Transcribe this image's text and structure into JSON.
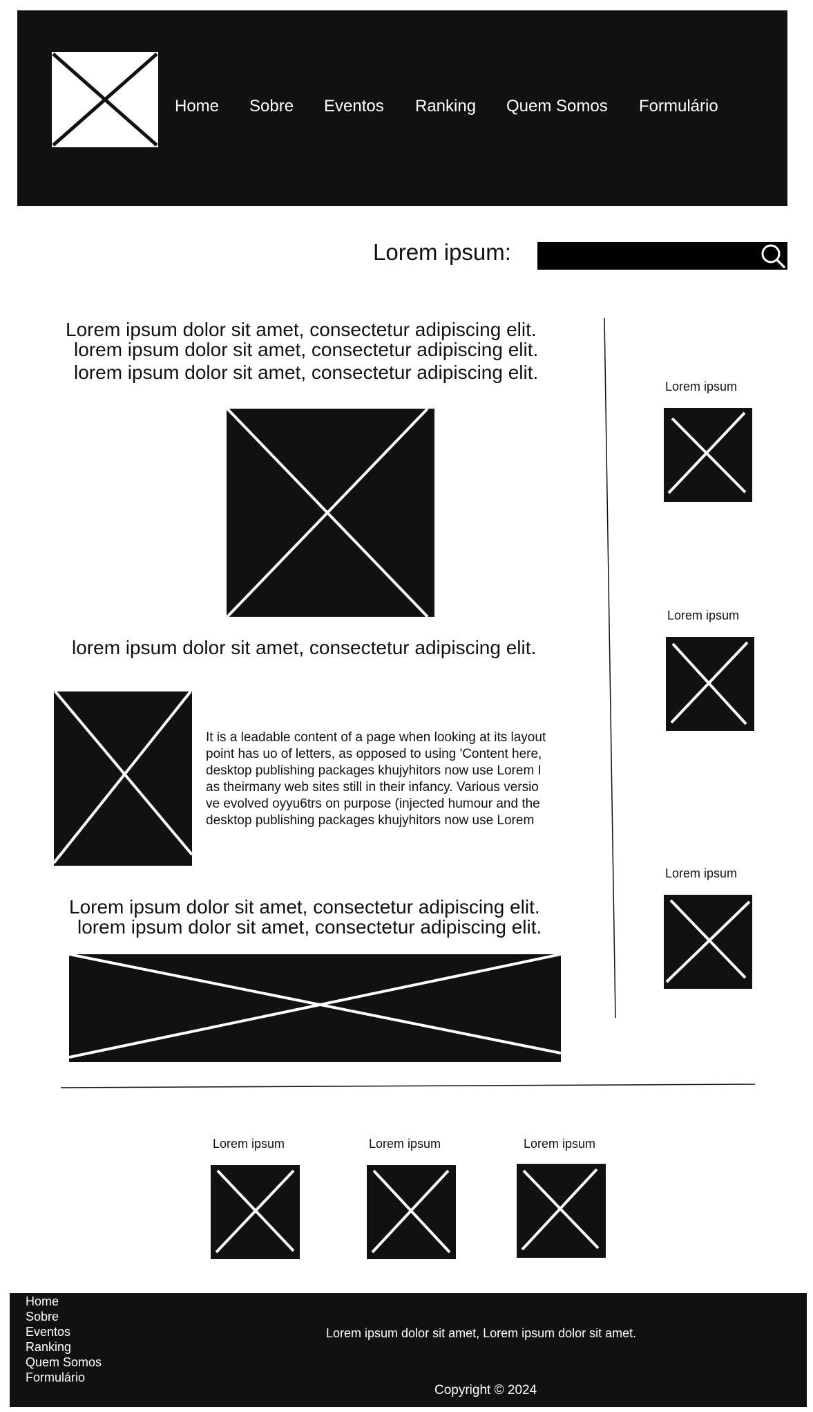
{
  "header": {
    "logo_icon": "image-placeholder-icon",
    "nav": [
      "Home",
      "Sobre",
      "Eventos",
      "Ranking",
      "Quem Somos",
      "Formulário"
    ]
  },
  "search": {
    "label": "Lorem ipsum:",
    "value": "",
    "placeholder": "",
    "icon": "search-icon"
  },
  "main": {
    "intro_lines": [
      "Lorem ipsum dolor sit amet, consectetur adipiscing elit.",
      "lorem ipsum dolor sit amet, consectetur adipiscing elit.",
      "lorem ipsum dolor sit amet, consectetur adipiscing elit."
    ],
    "caption": "lorem ipsum dolor sit amet, consectetur adipiscing elit.",
    "paragraph_lines": [
      "It is a leadable content of a page when looking at its layout",
      "point has uo of letters, as opposed to using 'Content here,",
      " desktop publishing packages khujyhitors now use Lorem I",
      " as theirmany web sites still in their infancy. Various versio",
      "ve evolved oyyu6trs on purpose (injected humour and the",
      "desktop publishing packages khujyhitors now use Lorem"
    ],
    "closing_lines": [
      "Lorem ipsum dolor sit amet, consectetur adipiscing elit.",
      "lorem ipsum dolor sit amet, consectetur adipiscing elit."
    ]
  },
  "sidebar": {
    "items": [
      {
        "caption": "Lorem ipsum"
      },
      {
        "caption": "Lorem ipsum"
      },
      {
        "caption": "Lorem ipsum"
      }
    ]
  },
  "gallery": {
    "items": [
      {
        "caption": "Lorem ipsum"
      },
      {
        "caption": "Lorem ipsum"
      },
      {
        "caption": "Lorem ipsum"
      }
    ]
  },
  "footer": {
    "links": [
      "Home",
      "Sobre",
      "Eventos",
      "Ranking",
      "Quem Somos",
      "Formulário"
    ],
    "text": "Lorem ipsum dolor sit amet, Lorem ipsum dolor sit amet.",
    "copyright": "Copyright © 2024"
  },
  "colors": {
    "dark": "#111111",
    "light": "#ffffff"
  }
}
